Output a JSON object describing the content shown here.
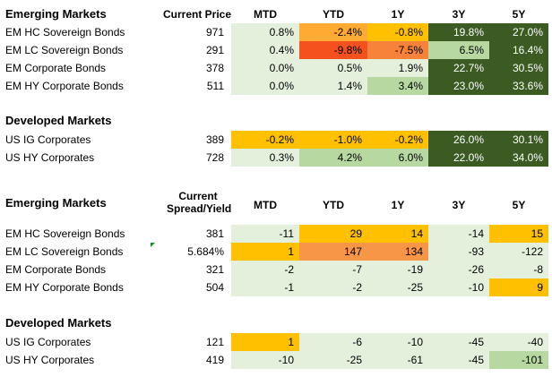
{
  "palette": {
    "light_green": "#e4f0dc",
    "mid_green": "#b7d8a0",
    "dark_green": "#3b5b22",
    "yellow": "#ffc000",
    "orange": "#f79646",
    "red_orange": "#f4511e",
    "light_orange": "#fbb454"
  },
  "price_table": {
    "headers": {
      "section": "Emerging Markets",
      "col0": "Current Price",
      "cols": [
        "MTD",
        "YTD",
        "1Y",
        "3Y",
        "5Y"
      ]
    },
    "em_rows": [
      {
        "name": "EM HC Sovereign Bonds",
        "value": "971",
        "cells": [
          {
            "text": "0.8%",
            "bg": "#e4f0dc",
            "fg": "#000"
          },
          {
            "text": "-2.4%",
            "bg": "#ffaa33",
            "fg": "#000"
          },
          {
            "text": "-0.8%",
            "bg": "#ffc000",
            "fg": "#000"
          },
          {
            "text": "19.8%",
            "bg": "#3b5b22",
            "fg": "#fff"
          },
          {
            "text": "27.0%",
            "bg": "#3b5b22",
            "fg": "#fff"
          }
        ]
      },
      {
        "name": "EM LC Sovereign Bonds",
        "value": "291",
        "cells": [
          {
            "text": "0.4%",
            "bg": "#e4f0dc",
            "fg": "#000"
          },
          {
            "text": "-9.8%",
            "bg": "#f4511e",
            "fg": "#000"
          },
          {
            "text": "-7.5%",
            "bg": "#f7823a",
            "fg": "#000"
          },
          {
            "text": "6.5%",
            "bg": "#b7d8a0",
            "fg": "#000"
          },
          {
            "text": "16.4%",
            "bg": "#3b5b22",
            "fg": "#fff"
          }
        ]
      },
      {
        "name": "EM Corporate Bonds",
        "value": "378",
        "cells": [
          {
            "text": "0.0%",
            "bg": "#e4f0dc",
            "fg": "#000"
          },
          {
            "text": "0.5%",
            "bg": "#e4f0dc",
            "fg": "#000"
          },
          {
            "text": "1.9%",
            "bg": "#e4f0dc",
            "fg": "#000"
          },
          {
            "text": "22.7%",
            "bg": "#3b5b22",
            "fg": "#fff"
          },
          {
            "text": "30.5%",
            "bg": "#3b5b22",
            "fg": "#fff"
          }
        ]
      },
      {
        "name": "EM HY Corporate Bonds",
        "value": "511",
        "cells": [
          {
            "text": "0.0%",
            "bg": "#e4f0dc",
            "fg": "#000"
          },
          {
            "text": "1.4%",
            "bg": "#e4f0dc",
            "fg": "#000"
          },
          {
            "text": "3.4%",
            "bg": "#b7d8a0",
            "fg": "#000"
          },
          {
            "text": "23.0%",
            "bg": "#3b5b22",
            "fg": "#fff"
          },
          {
            "text": "33.6%",
            "bg": "#3b5b22",
            "fg": "#fff"
          }
        ]
      }
    ],
    "dm_title": "Developed Markets",
    "dm_rows": [
      {
        "name": "US IG Corporates",
        "value": "389",
        "cells": [
          {
            "text": "-0.2%",
            "bg": "#ffc000",
            "fg": "#000"
          },
          {
            "text": "-1.0%",
            "bg": "#ffc000",
            "fg": "#000"
          },
          {
            "text": "-0.2%",
            "bg": "#ffc000",
            "fg": "#000"
          },
          {
            "text": "26.0%",
            "bg": "#3b5b22",
            "fg": "#fff"
          },
          {
            "text": "30.1%",
            "bg": "#3b5b22",
            "fg": "#fff"
          }
        ]
      },
      {
        "name": "US HY Corporates",
        "value": "728",
        "cells": [
          {
            "text": "0.3%",
            "bg": "#e4f0dc",
            "fg": "#000"
          },
          {
            "text": "4.2%",
            "bg": "#b7d8a0",
            "fg": "#000"
          },
          {
            "text": "6.0%",
            "bg": "#b7d8a0",
            "fg": "#000"
          },
          {
            "text": "22.0%",
            "bg": "#3b5b22",
            "fg": "#fff"
          },
          {
            "text": "34.0%",
            "bg": "#3b5b22",
            "fg": "#fff"
          }
        ]
      }
    ]
  },
  "spread_table": {
    "headers": {
      "section": "Emerging Markets",
      "col0_line1": "Current",
      "col0_line2": "Spread/Yield",
      "cols": [
        "MTD",
        "YTD",
        "1Y",
        "3Y",
        "5Y"
      ]
    },
    "em_rows": [
      {
        "name": "EM HC Sovereign Bonds",
        "value": "381",
        "cells": [
          {
            "text": "-11",
            "bg": "#e4f0dc"
          },
          {
            "text": "29",
            "bg": "#ffc000"
          },
          {
            "text": "14",
            "bg": "#ffc000"
          },
          {
            "text": "-14",
            "bg": "#e4f0dc"
          },
          {
            "text": "15",
            "bg": "#ffc000"
          }
        ]
      },
      {
        "name": "EM LC Sovereign Bonds",
        "value": "5.684%",
        "cells": [
          {
            "text": "1",
            "bg": "#ffc000"
          },
          {
            "text": "147",
            "bg": "#f79646"
          },
          {
            "text": "134",
            "bg": "#f79646"
          },
          {
            "text": "-93",
            "bg": "#e4f0dc"
          },
          {
            "text": "-122",
            "bg": "#e4f0dc"
          }
        ]
      },
      {
        "name": "EM Corporate Bonds",
        "value": "321",
        "cells": [
          {
            "text": "-2",
            "bg": "#e4f0dc"
          },
          {
            "text": "-7",
            "bg": "#e4f0dc"
          },
          {
            "text": "-19",
            "bg": "#e4f0dc"
          },
          {
            "text": "-26",
            "bg": "#e4f0dc"
          },
          {
            "text": "-8",
            "bg": "#e4f0dc"
          }
        ]
      },
      {
        "name": "EM HY Corporate Bonds",
        "value": "504",
        "cells": [
          {
            "text": "-1",
            "bg": "#e4f0dc"
          },
          {
            "text": "-2",
            "bg": "#e4f0dc"
          },
          {
            "text": "-25",
            "bg": "#e4f0dc"
          },
          {
            "text": "-10",
            "bg": "#e4f0dc"
          },
          {
            "text": "9",
            "bg": "#ffc000"
          }
        ]
      }
    ],
    "dm_title": "Developed Markets",
    "dm_rows": [
      {
        "name": "US IG Corporates",
        "value": "121",
        "cells": [
          {
            "text": "1",
            "bg": "#ffc000"
          },
          {
            "text": "-6",
            "bg": "#e4f0dc"
          },
          {
            "text": "-10",
            "bg": "#e4f0dc"
          },
          {
            "text": "-45",
            "bg": "#e4f0dc"
          },
          {
            "text": "-40",
            "bg": "#e4f0dc"
          }
        ]
      },
      {
        "name": "US HY Corporates",
        "value": "419",
        "cells": [
          {
            "text": "-10",
            "bg": "#e4f0dc"
          },
          {
            "text": "-25",
            "bg": "#e4f0dc"
          },
          {
            "text": "-61",
            "bg": "#e4f0dc"
          },
          {
            "text": "-45",
            "bg": "#e4f0dc"
          },
          {
            "text": "-101",
            "bg": "#b7d8a0"
          }
        ]
      }
    ]
  }
}
